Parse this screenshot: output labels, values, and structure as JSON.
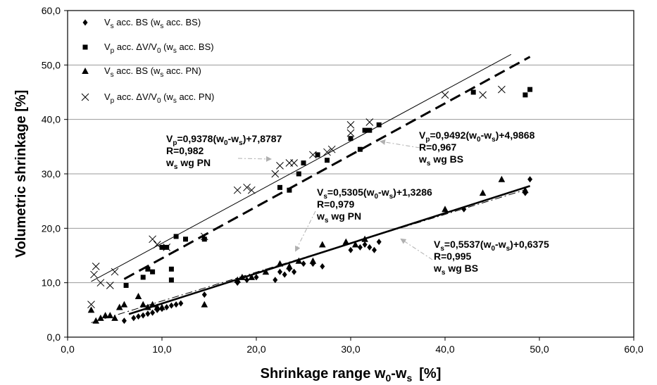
{
  "chart_data": {
    "type": "scatter",
    "xlabel": "Shrinkage range w",
    "xlabel_sub_0": "0",
    "xlabel_mid": "-w",
    "xlabel_sub_s": "s",
    "xlabel_unit": "[%]",
    "ylabel": "Volumetric shrinkage [%]",
    "xlim": [
      0,
      60
    ],
    "ylim": [
      0,
      60
    ],
    "grid": "horizontal",
    "x_ticks": [
      "0,0",
      "10,0",
      "20,0",
      "30,0",
      "40,0",
      "50,0",
      "60,0"
    ],
    "y_ticks": [
      "0,0",
      "10,0",
      "20,0",
      "30,0",
      "40,0",
      "50,0",
      "60,0"
    ],
    "legend_placement": "top-left",
    "legend": [
      {
        "marker": "diamond",
        "main": "V",
        "sub": "s",
        "text": " acc. BS (w",
        "sub2": "s",
        "text2": " acc. BS)"
      },
      {
        "marker": "square",
        "main": "V",
        "sub": "p",
        "text": " acc. ΔV/V",
        "sub2": "0",
        "text2": " (w",
        "sub3": "s",
        "text3": " acc. BS)"
      },
      {
        "marker": "triangle",
        "main": "V",
        "sub": "s",
        "text": " acc. BS (w",
        "sub2": "s",
        "text2": " acc. PN)"
      },
      {
        "marker": "cross",
        "main": "V",
        "sub": "p",
        "text": " acc. ΔV/V",
        "sub2": "0",
        "text2": " (w",
        "sub3": "s",
        "text3": " acc. PN)"
      }
    ],
    "series": [
      {
        "marker": "diamond",
        "x": [
          6,
          7,
          7.5,
          8,
          8.5,
          9,
          9.5,
          10,
          10.5,
          11,
          11.5,
          12,
          14.5,
          18,
          19,
          20,
          22,
          22.5,
          23,
          23.5,
          24,
          25,
          26,
          27,
          30,
          31,
          31.5,
          32,
          32.5,
          33,
          42,
          48.5,
          49
        ],
        "y": [
          3,
          3.5,
          3.8,
          4,
          4.3,
          4.5,
          5,
          5.2,
          5.5,
          5.8,
          6,
          6.2,
          7.8,
          10,
          10.5,
          11,
          10.5,
          12,
          11.5,
          12.5,
          12,
          13.5,
          13.5,
          13,
          16,
          16.5,
          17,
          16.5,
          16,
          17.5,
          23.5,
          26.5,
          29
        ]
      },
      {
        "marker": "square",
        "x": [
          6.2,
          8,
          8.5,
          9,
          10,
          10.5,
          11,
          11,
          11.5,
          12.5,
          14.5,
          22.5,
          23.5,
          24.5,
          25,
          26.5,
          27.5,
          30,
          31,
          31.5,
          32,
          33,
          43,
          48.5,
          49
        ],
        "y": [
          9.5,
          11,
          12.5,
          12,
          16.5,
          16.5,
          10.5,
          12.5,
          18.5,
          18,
          18,
          27.5,
          27,
          30,
          32,
          33.5,
          32.5,
          36.5,
          34.5,
          38,
          38,
          39,
          45,
          44.5,
          45.5
        ]
      },
      {
        "marker": "triangle",
        "x": [
          2.5,
          3,
          3.5,
          4,
          4.5,
          5,
          5.5,
          6,
          7.5,
          8,
          8.5,
          9,
          9.5,
          10,
          14.5,
          18,
          18.5,
          19.5,
          21,
          22.5,
          23.5,
          24.5,
          26,
          27,
          29.5,
          30.5,
          31.5,
          40,
          44,
          46,
          48.5
        ],
        "y": [
          5,
          3,
          3.5,
          4,
          4,
          3.5,
          5.5,
          6,
          7.5,
          6,
          5.5,
          6,
          5.5,
          5.5,
          6,
          10.5,
          11,
          11,
          12,
          13.5,
          13,
          14,
          14,
          17,
          17.5,
          17,
          18,
          23.5,
          26.5,
          29,
          27
        ]
      },
      {
        "marker": "cross",
        "x": [
          2.5,
          2.8,
          3,
          3.5,
          4.5,
          5,
          9,
          9.5,
          10.5,
          14.5,
          18,
          19,
          19.5,
          22,
          22.5,
          23.5,
          24,
          26,
          27.5,
          28,
          30,
          30,
          32,
          40,
          44,
          46
        ],
        "y": [
          6,
          11.5,
          13,
          10,
          9.5,
          12,
          18,
          17,
          16.5,
          18.5,
          27,
          27.5,
          27,
          30,
          31.5,
          32,
          32,
          33.5,
          34,
          34.5,
          37.5,
          39,
          39.5,
          44.5,
          44.5,
          45.5
        ]
      }
    ],
    "trendlines": [
      {
        "style": "thin-solid",
        "x": [
          2.5,
          47
        ],
        "y": [
          10.22,
          51.95
        ]
      },
      {
        "style": "bold-dashed",
        "x": [
          6,
          49
        ],
        "y": [
          10.68,
          51.5
        ]
      },
      {
        "style": "dash-dot",
        "x": [
          2.5,
          48.5
        ],
        "y": [
          2.66,
          27.06
        ]
      },
      {
        "style": "bold-solid",
        "x": [
          6.5,
          49
        ],
        "y": [
          4.24,
          27.77
        ]
      }
    ],
    "annotations": [
      {
        "lines": [
          [
            "V",
            "p",
            "=0,9378(w",
            "0",
            "-w",
            "s",
            ")+7,8787"
          ],
          [
            "R=0,982"
          ],
          [
            "w",
            "s",
            " wg PN"
          ]
        ]
      },
      {
        "lines": [
          [
            "V",
            "p",
            "=0,9492(w",
            "0",
            "-w",
            "s",
            ")+4,9868"
          ],
          [
            "R=0,967"
          ],
          [
            "w",
            "s",
            " wg BS"
          ]
        ]
      },
      {
        "lines": [
          [
            "V",
            "s",
            "=0,5305(w",
            "0",
            "-w",
            "s",
            ")+1,3286"
          ],
          [
            "R=0,979"
          ],
          [
            "w",
            "s",
            " wg PN"
          ]
        ]
      },
      {
        "lines": [
          [
            "V",
            "s",
            "=0,5537(w",
            "0",
            "-w",
            "s",
            ")+0,6375"
          ],
          [
            "R=0,995"
          ],
          [
            "w",
            "s",
            " wg BS"
          ]
        ]
      }
    ]
  }
}
